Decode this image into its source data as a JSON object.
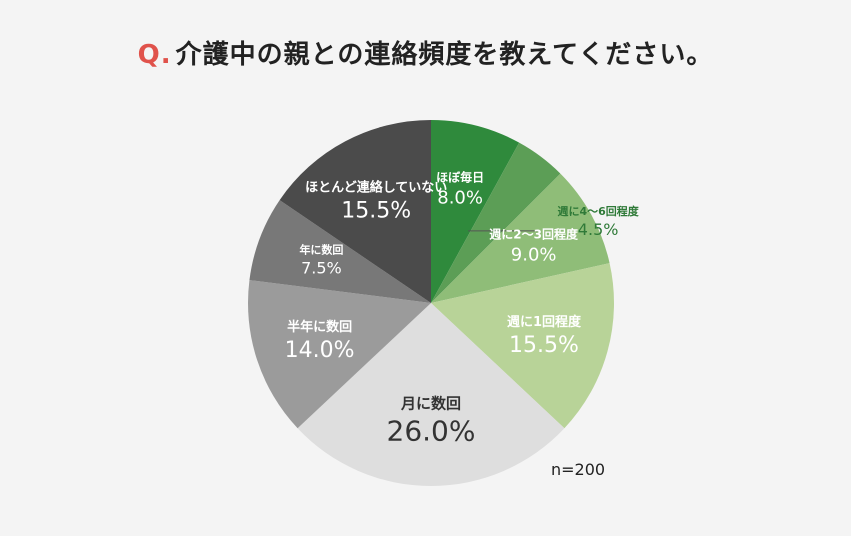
{
  "title": {
    "prefix": "Q.",
    "text": "介護中の親との連絡頻度を教えてください。"
  },
  "sample_note": "n=200",
  "colors": {
    "accent": "#e0524b",
    "title": "#222222"
  },
  "chart_data": {
    "type": "pie",
    "title": "Q.介護中の親との連絡頻度を教えてください。",
    "start": "top",
    "direction": "clockwise",
    "categories": [
      "ほぼ毎日",
      "週に4〜6回程度",
      "週に2〜3回程度",
      "週に1回程度",
      "月に数回",
      "半年に数回",
      "年に数回",
      "ほとんど連絡していない"
    ],
    "values": [
      8.0,
      4.5,
      9.0,
      15.5,
      26.0,
      14.0,
      7.5,
      15.5
    ],
    "value_labels": [
      "8.0%",
      "4.5%",
      "9.0%",
      "15.5%",
      "26.0%",
      "14.0%",
      "7.5%",
      "15.5%"
    ],
    "colors": [
      "#2f8a3c",
      "#5c9e56",
      "#8fbd78",
      "#b8d398",
      "#dedede",
      "#9b9b9b",
      "#787878",
      "#4b4b4b"
    ],
    "label_colors": [
      "#ffffff",
      "#2f7a38",
      "#ffffff",
      "#ffffff",
      "#333333",
      "#ffffff",
      "#ffffff",
      "#ffffff"
    ],
    "label_outside": [
      false,
      true,
      false,
      false,
      false,
      false,
      false,
      false
    ],
    "label_size": [
      "m",
      "s",
      "m",
      "l",
      "xl",
      "l",
      "s",
      "l"
    ],
    "annotation": "n=200"
  }
}
